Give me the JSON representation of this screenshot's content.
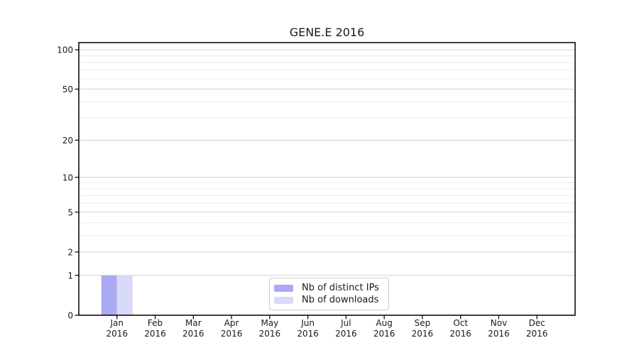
{
  "figure": {
    "background": "#ffffff"
  },
  "chart_data": {
    "type": "bar",
    "title": "GENE.E 2016",
    "xlabel": "",
    "ylabel": "",
    "categories": [
      "Jan",
      "Feb",
      "Mar",
      "Apr",
      "May",
      "Jun",
      "Jul",
      "Aug",
      "Sep",
      "Oct",
      "Nov",
      "Dec"
    ],
    "category_year": "2016",
    "series": [
      {
        "name": "Nb of distinct IPs",
        "color": "#aaaaf2",
        "values": [
          1,
          0,
          0,
          0,
          0,
          0,
          0,
          0,
          0,
          0,
          0,
          0
        ]
      },
      {
        "name": "Nb of downloads",
        "color": "#d9d9f8",
        "values": [
          1,
          0,
          0,
          0,
          0,
          0,
          0,
          0,
          0,
          0,
          0,
          0
        ]
      }
    ],
    "yscale": "log1p",
    "ylim": [
      0,
      113.5
    ],
    "ytick_values": [
      0,
      1,
      2,
      5,
      10,
      20,
      50,
      100
    ],
    "minor_gridline_values": [
      3,
      4,
      6,
      7,
      8,
      9,
      30,
      40,
      60,
      70,
      80,
      90
    ],
    "grid": "horizontal",
    "legend_position": "inside-bottom-center"
  },
  "colors": {
    "frame": "#000000",
    "tick": "#000000",
    "label_text": "#1a1a1a",
    "major_grid": "#d0d0d0",
    "minor_grid": "#ececec",
    "legend_border": "#cccccc"
  }
}
